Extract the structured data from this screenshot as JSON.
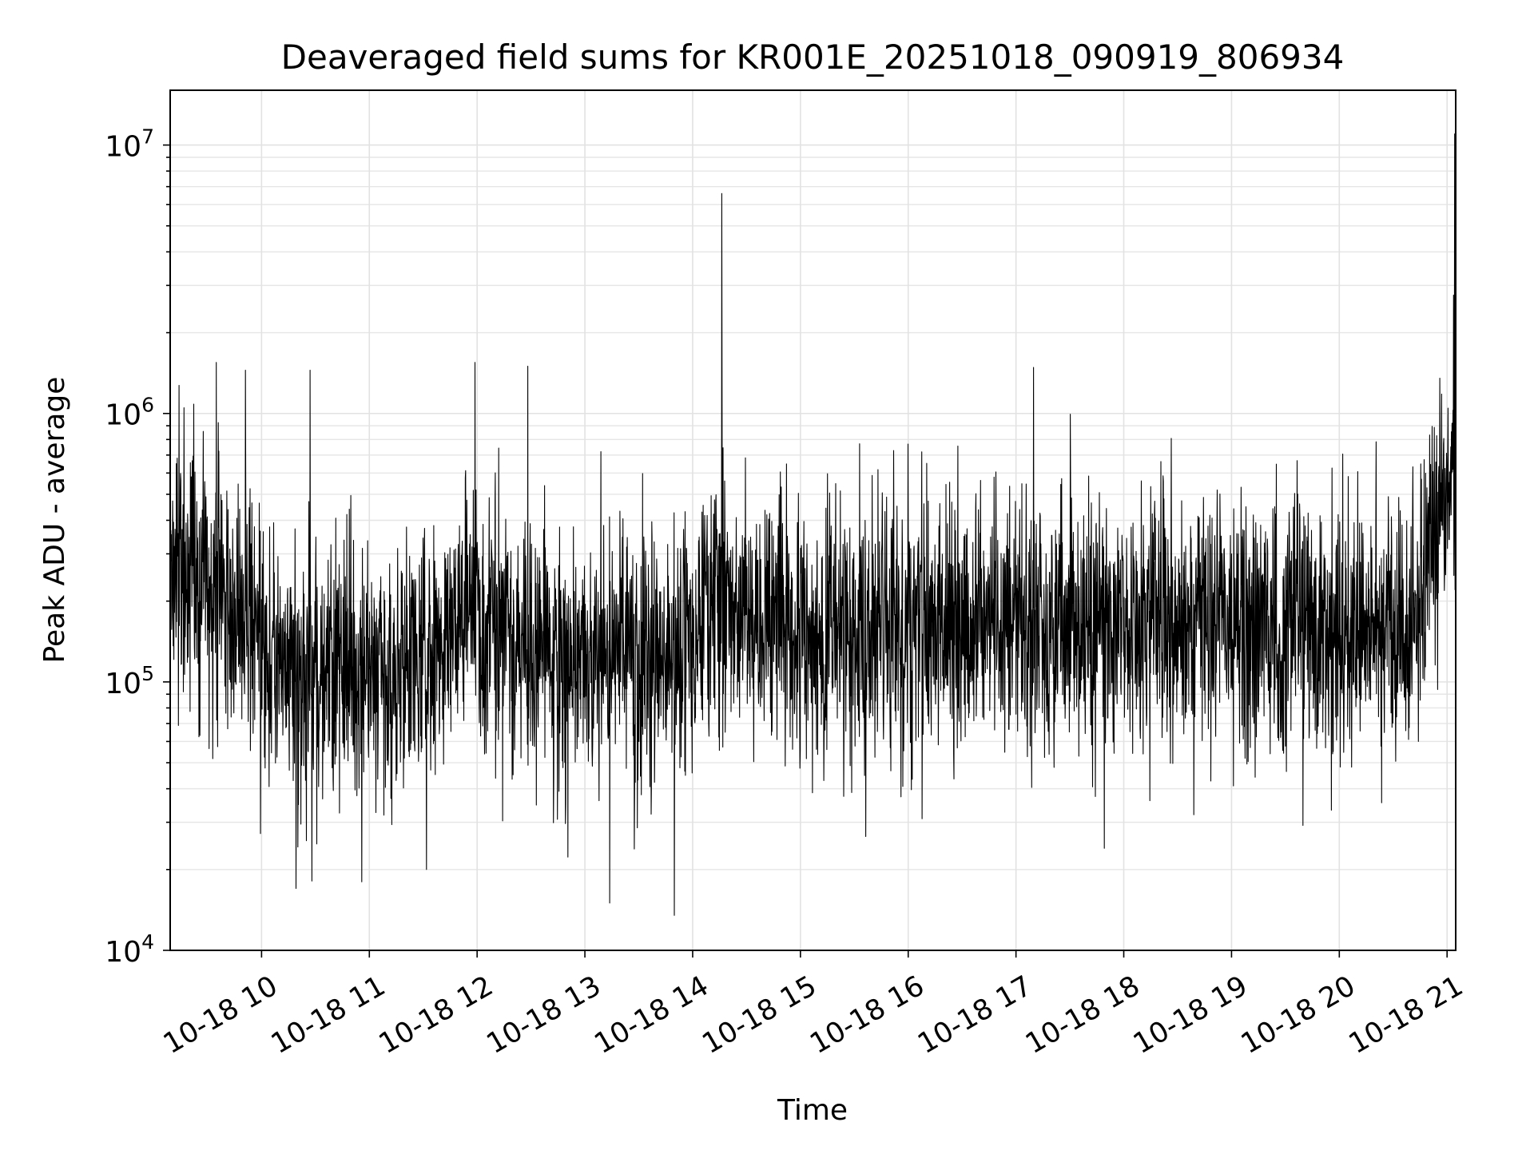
{
  "chart_data": {
    "type": "line",
    "title": "Deaveraged field sums for KR001E_20251018_090919_806934",
    "xlabel": "Time",
    "ylabel": "Peak ADU - average",
    "yscale": "log",
    "ylim": [
      10000,
      16000000
    ],
    "xlim_hours": [
      9.152,
      21.08
    ],
    "xticks": [
      {
        "hour": 10,
        "label": "10-18 10"
      },
      {
        "hour": 11,
        "label": "10-18 11"
      },
      {
        "hour": 12,
        "label": "10-18 12"
      },
      {
        "hour": 13,
        "label": "10-18 13"
      },
      {
        "hour": 14,
        "label": "10-18 14"
      },
      {
        "hour": 15,
        "label": "10-18 15"
      },
      {
        "hour": 16,
        "label": "10-18 16"
      },
      {
        "hour": 17,
        "label": "10-18 17"
      },
      {
        "hour": 18,
        "label": "10-18 18"
      },
      {
        "hour": 19,
        "label": "10-18 19"
      },
      {
        "hour": 20,
        "label": "10-18 20"
      },
      {
        "hour": 21,
        "label": "10-18 21"
      }
    ],
    "yticks": [
      {
        "value": 10000,
        "base": "10",
        "exp": "4"
      },
      {
        "value": 100000,
        "base": "10",
        "exp": "5"
      },
      {
        "value": 1000000,
        "base": "10",
        "exp": "6"
      },
      {
        "value": 10000000,
        "base": "10",
        "exp": "7"
      }
    ],
    "grid": true,
    "series": [
      {
        "name": "deaveraged field sum",
        "color": "#000000",
        "x_start_hour": 9.152,
        "x_end_hour": 21.08,
        "baseline_profile": [
          {
            "hour": 9.15,
            "value": 260000
          },
          {
            "hour": 9.5,
            "value": 230000
          },
          {
            "hour": 9.8,
            "value": 180000
          },
          {
            "hour": 10.0,
            "value": 120000
          },
          {
            "hour": 10.6,
            "value": 110000
          },
          {
            "hour": 11.0,
            "value": 105000
          },
          {
            "hour": 11.7,
            "value": 130000
          },
          {
            "hour": 11.95,
            "value": 230000
          },
          {
            "hour": 12.2,
            "value": 150000
          },
          {
            "hour": 12.8,
            "value": 110000
          },
          {
            "hour": 13.5,
            "value": 130000
          },
          {
            "hour": 13.95,
            "value": 120000
          },
          {
            "hour": 14.15,
            "value": 240000
          },
          {
            "hour": 14.3,
            "value": 170000
          },
          {
            "hour": 15.0,
            "value": 160000
          },
          {
            "hour": 15.5,
            "value": 140000
          },
          {
            "hour": 16.0,
            "value": 165000
          },
          {
            "hour": 17.0,
            "value": 170000
          },
          {
            "hour": 17.3,
            "value": 155000
          },
          {
            "hour": 18.0,
            "value": 165000
          },
          {
            "hour": 18.6,
            "value": 185000
          },
          {
            "hour": 19.0,
            "value": 175000
          },
          {
            "hour": 19.7,
            "value": 160000
          },
          {
            "hour": 20.5,
            "value": 150000
          },
          {
            "hour": 20.75,
            "value": 200000
          },
          {
            "hour": 20.85,
            "value": 350000
          },
          {
            "hour": 21.08,
            "value": 600000
          }
        ],
        "notable_points": [
          {
            "hour": 9.28,
            "value": 1050000
          },
          {
            "hour": 9.58,
            "value": 1550000
          },
          {
            "hour": 9.85,
            "value": 1450000
          },
          {
            "hour": 10.45,
            "value": 1450000
          },
          {
            "hour": 10.93,
            "value": 18000
          },
          {
            "hour": 11.53,
            "value": 20000
          },
          {
            "hour": 11.98,
            "value": 1550000
          },
          {
            "hour": 12.47,
            "value": 1500000
          },
          {
            "hour": 13.23,
            "value": 15000
          },
          {
            "hour": 13.83,
            "value": 13500
          },
          {
            "hour": 14.27,
            "value": 6600000
          },
          {
            "hour": 17.82,
            "value": 24000
          },
          {
            "hour": 18.65,
            "value": 32000
          },
          {
            "hour": 21.07,
            "value": 11000000
          }
        ]
      }
    ]
  }
}
